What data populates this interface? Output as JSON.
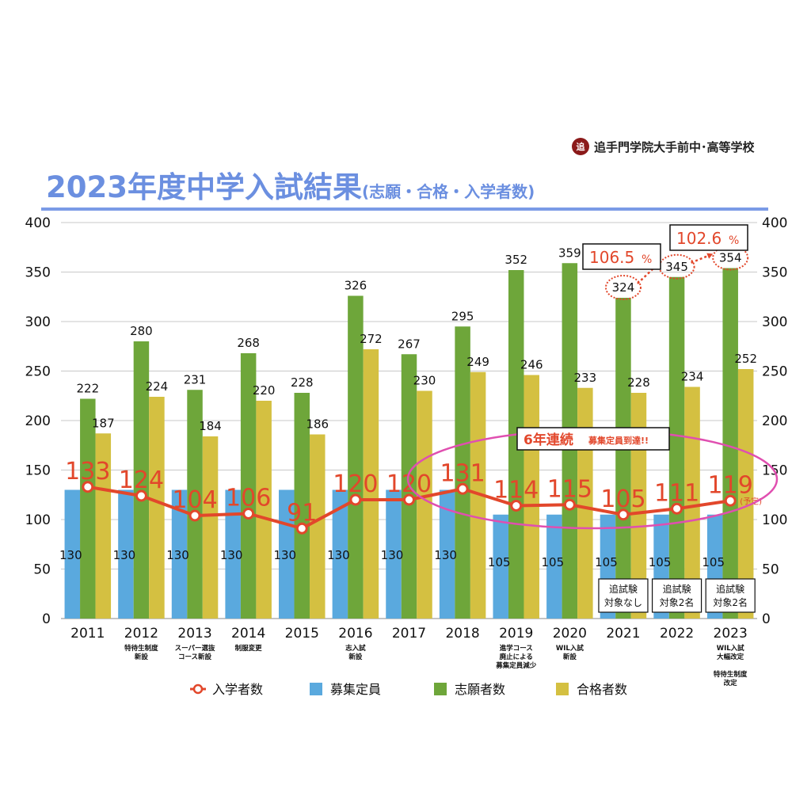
{
  "header": {
    "school_name": "追手門学院大手前中･高等学校",
    "crest_glyph": "追",
    "title_main": "2023年度中学入試結果",
    "title_sub": "(志願・合格・入学者数)"
  },
  "colors": {
    "capacity": "#5aa9de",
    "applicants": "#6ea63a",
    "passed": "#d4c041",
    "enrolled": "#e2472b",
    "highlight_ellipse": "#e04fb0",
    "title": "#6b8fe0"
  },
  "chart_data": {
    "type": "bar",
    "categories": [
      "2011",
      "2012",
      "2013",
      "2014",
      "2015",
      "2016",
      "2017",
      "2018",
      "2019",
      "2020",
      "2021",
      "2022",
      "2023"
    ],
    "category_notes": [
      [],
      [
        "特待生制度",
        "新設"
      ],
      [
        "スーパー選抜",
        "コース新設"
      ],
      [
        "制服変更"
      ],
      [],
      [
        "志入試",
        "新設"
      ],
      [],
      [],
      [
        "進学コース",
        "廃止による",
        "募集定員減少"
      ],
      [
        "WIL入試",
        "新設"
      ],
      [],
      [],
      [
        "WIL入試",
        "大幅改定",
        "",
        "特待生制度",
        "改定"
      ]
    ],
    "ylim": [
      0,
      400
    ],
    "yticks": [
      0,
      50,
      100,
      150,
      200,
      250,
      300,
      350,
      400
    ],
    "ytick_labels": [
      "0",
      "50",
      "100",
      "150",
      "200",
      "250",
      "300",
      "350",
      "400"
    ],
    "series": [
      {
        "name": "募集定員",
        "kind": "bar",
        "values": [
          130,
          130,
          130,
          130,
          130,
          130,
          130,
          130,
          105,
          105,
          105,
          105,
          105
        ]
      },
      {
        "name": "志願者数",
        "kind": "bar",
        "values": [
          222,
          280,
          231,
          268,
          228,
          326,
          267,
          295,
          352,
          359,
          324,
          345,
          354
        ]
      },
      {
        "name": "合格者数",
        "kind": "bar",
        "values": [
          187,
          224,
          184,
          220,
          186,
          272,
          230,
          249,
          246,
          233,
          228,
          234,
          252
        ]
      },
      {
        "name": "入学者数",
        "kind": "line",
        "values": [
          133,
          124,
          104,
          106,
          91,
          120,
          120,
          131,
          114,
          115,
          105,
          111,
          119
        ]
      }
    ],
    "value_labels": {
      "capacity": [
        "130",
        "130",
        "130",
        "130",
        "130",
        "130",
        "130",
        "130",
        "105",
        "105",
        "105",
        "105",
        "105"
      ],
      "applicants": [
        "222",
        "280",
        "231",
        "268",
        "228",
        "326",
        "267",
        "295",
        "352",
        "359",
        "324",
        "345",
        "354"
      ],
      "passed": [
        "187",
        "224",
        "184",
        "220",
        "186",
        "272",
        "230",
        "249",
        "246",
        "233",
        "228",
        "234",
        "252"
      ],
      "enrolled": [
        "133",
        "124",
        "104",
        "106",
        "91",
        "120",
        "120",
        "131",
        "114",
        "115",
        "105",
        "111",
        "119"
      ]
    },
    "legend_order": [
      "入学者数",
      "募集定員",
      "志願者数",
      "合格者数"
    ],
    "legend_placement": "bottom",
    "grid": true,
    "annotations": {
      "enrolled_2023_suffix": "(予定)",
      "growth": [
        {
          "text": "106.5",
          "unit": "%",
          "from": "2021",
          "to": "2022"
        },
        {
          "text": "102.6",
          "unit": "%",
          "from": "2022",
          "to": "2023"
        }
      ],
      "banner_big": "6年連続",
      "banner_small": "募集定員到達!!",
      "supplementary_exams": [
        {
          "category": "2021",
          "lines": [
            "追試験",
            "対象なし"
          ]
        },
        {
          "category": "2022",
          "lines": [
            "追試験",
            "対象2名"
          ]
        },
        {
          "category": "2023",
          "lines": [
            "追試験",
            "対象2名"
          ]
        }
      ]
    }
  }
}
